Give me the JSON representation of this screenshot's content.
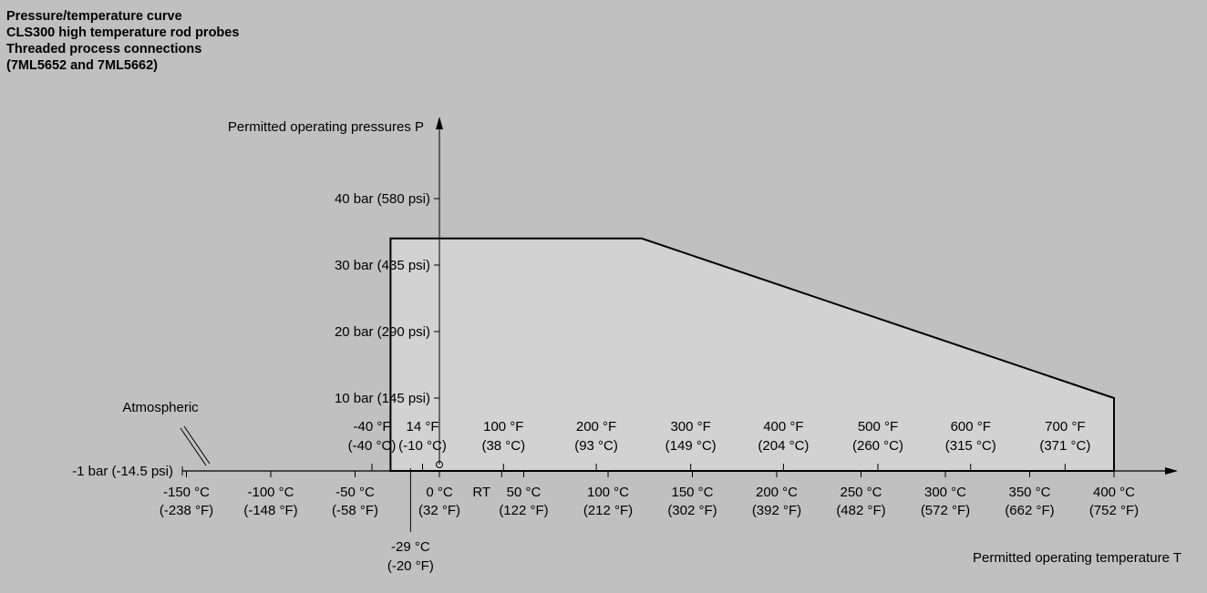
{
  "title_lines": [
    "Pressure/temperature curve",
    "CLS300 high temperature rod probes",
    "Threaded process connections",
    "(7ML5652 and 7ML5662)"
  ],
  "chart_data": {
    "type": "area",
    "ylabel": "Permitted operating pressures P",
    "xlabel": "Permitted operating temperature T",
    "y_unit": "bar",
    "x_unit": "°C",
    "series": [
      {
        "values": [
          {
            "x": -29,
            "y": -1
          },
          {
            "x": -29,
            "y": 34
          },
          {
            "x": 120,
            "y": 34
          },
          {
            "x": 400,
            "y": 10
          },
          {
            "x": 400,
            "y": -1
          }
        ]
      }
    ],
    "y_ticks": [
      {
        "value": -1,
        "label": "-1 bar (-14.5 psi)"
      },
      {
        "value": 10,
        "label": "10 bar (145 psi)"
      },
      {
        "value": 20,
        "label": "20 bar (290 psi)"
      },
      {
        "value": 30,
        "label": "30 bar (435 psi)"
      },
      {
        "value": 40,
        "label": "40 bar (580 psi)"
      }
    ],
    "x_ticks_c": [
      {
        "value": -150,
        "label1": "-150 °C",
        "label2": "(-238 °F)"
      },
      {
        "value": -100,
        "label1": "-100 °C",
        "label2": "(-148 °F)"
      },
      {
        "value": -50,
        "label1": "-50 °C",
        "label2": "(-58 °F)"
      },
      {
        "value": 0,
        "label1": "0 °C",
        "label2": "(32 °F)"
      },
      {
        "value": 50,
        "label1": "50 °C",
        "label2": "(122 °F)"
      },
      {
        "value": 100,
        "label1": "100 °C",
        "label2": "(212 °F)"
      },
      {
        "value": 150,
        "label1": "150 °C",
        "label2": "(302 °F)"
      },
      {
        "value": 200,
        "label1": "200 °C",
        "label2": "(392 °F)"
      },
      {
        "value": 250,
        "label1": "250 °C",
        "label2": "(482 °F)"
      },
      {
        "value": 300,
        "label1": "300 °C",
        "label2": "(572 °F)"
      },
      {
        "value": 350,
        "label1": "350 °C",
        "label2": "(662 °F)"
      },
      {
        "value": 400,
        "label1": "400 °C",
        "label2": "(752 °F)"
      }
    ],
    "x_ticks_f": [
      {
        "value": -40,
        "label1": "-40 °F",
        "label2": "(-40 °C)"
      },
      {
        "value": -10,
        "label1": "14 °F",
        "label2": "(-10 °C)"
      },
      {
        "value": 38,
        "label1": "100 °F",
        "label2": "(38 °C)"
      },
      {
        "value": 93,
        "label1": "200 °F",
        "label2": "(93 °C)"
      },
      {
        "value": 149,
        "label1": "300 °F",
        "label2": "(149 °C)"
      },
      {
        "value": 204,
        "label1": "400 °F",
        "label2": "(204 °C)"
      },
      {
        "value": 260,
        "label1": "500 °F",
        "label2": "(260 °C)"
      },
      {
        "value": 315,
        "label1": "600 °F",
        "label2": "(315 °C)"
      },
      {
        "value": 371,
        "label1": "700 °F",
        "label2": "(371 °C)"
      }
    ],
    "annotations": [
      {
        "text": "RT",
        "x": 25
      },
      {
        "text": "-29 °C",
        "text2": "(-20 °F)",
        "x": -29
      },
      {
        "text": "Atmospheric"
      }
    ],
    "colors": {
      "background": "#c0c0c0",
      "fill": "#d2d2d2",
      "line": "#000000"
    }
  }
}
